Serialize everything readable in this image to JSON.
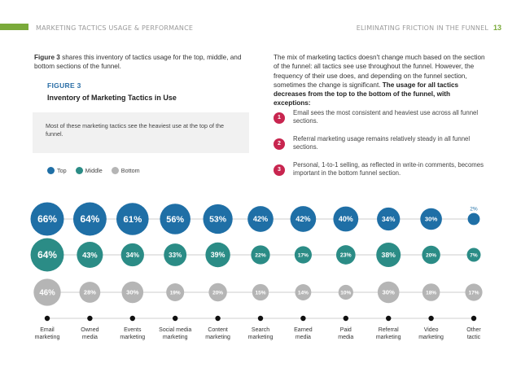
{
  "header": {
    "left": "MARKETING TACTICS USAGE & PERFORMANCE",
    "right": "ELIMINATING FRICTION IN THE FUNNEL",
    "page_number": "13"
  },
  "intro": {
    "bold": "Figure 3",
    "text": " shares this inventory of tactics usage for the top, middle, and bottom sections of the funnel."
  },
  "figure": {
    "label": "FIGURE 3",
    "title": "Inventory of Marketing Tactics in Use",
    "note": "Most of these marketing tactics see the heaviest use at the top of the funnel."
  },
  "legend": [
    {
      "label": "Top",
      "color": "#1f6fa6"
    },
    {
      "label": "Middle",
      "color": "#2b8c86"
    },
    {
      "label": "Bottom",
      "color": "#b5b5b5"
    }
  ],
  "right": {
    "text": "The mix of marketing tactics doesn't change much based on the section of the funnel: all tactics see use throughout the funnel. However, the frequency of their use does, and depending on the funnel section, sometimes the change is significant. ",
    "bold": "The usage for all tactics decreases from the top to the bottom of the funnel, with exceptions:"
  },
  "exceptions": [
    {
      "num": "1",
      "text": "Email sees the most consistent and heaviest use across all funnel sections."
    },
    {
      "num": "2",
      "text": "Referral marketing usage remains relatively steady in all funnel sections."
    },
    {
      "num": "3",
      "text": "Personal, 1-to-1 selling, as reflected in write-in comments, becomes important in the bottom funnel section."
    }
  ],
  "chart_data": {
    "type": "bubble-grid",
    "categories": [
      "Email marketing",
      "Owned media",
      "Events marketing",
      "Social media marketing",
      "Content marketing",
      "Search marketing",
      "Earned media",
      "Paid media",
      "Referral marketing",
      "Video marketing",
      "Other tactic"
    ],
    "series": [
      {
        "name": "Top",
        "color": "#1f6fa6",
        "values": [
          66,
          64,
          61,
          56,
          53,
          42,
          42,
          40,
          34,
          30,
          2
        ]
      },
      {
        "name": "Middle",
        "color": "#2b8c86",
        "values": [
          64,
          43,
          34,
          33,
          39,
          22,
          17,
          23,
          38,
          20,
          7
        ]
      },
      {
        "name": "Bottom",
        "color": "#b5b5b5",
        "values": [
          46,
          28,
          30,
          19,
          20,
          15,
          14,
          10,
          30,
          18,
          17
        ]
      }
    ],
    "unit": "%",
    "axis_dot_color": "#111111"
  }
}
